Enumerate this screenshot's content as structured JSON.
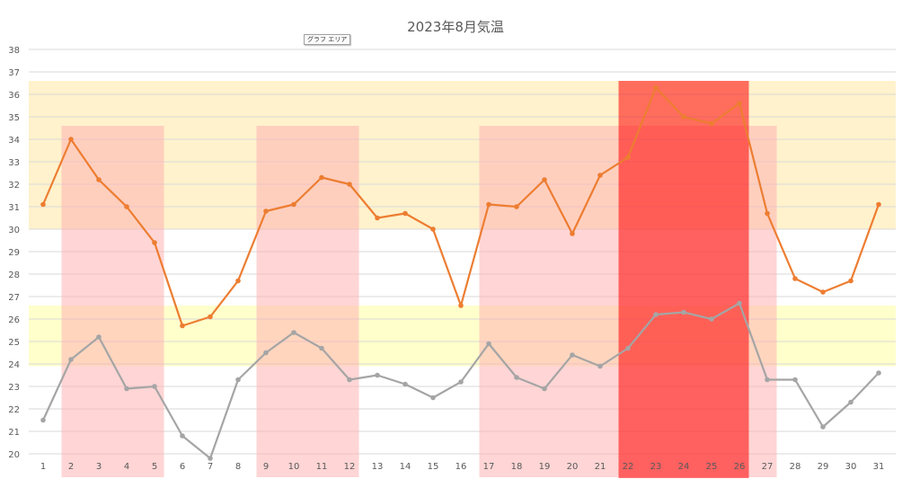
{
  "tooltip": "グラフ エリア",
  "chart_data": {
    "type": "line",
    "title": "2023年8月気温",
    "xlabel": "",
    "ylabel": "",
    "ylim": [
      20,
      38
    ],
    "yticks": [
      20,
      21,
      22,
      23,
      24,
      25,
      26,
      27,
      28,
      29,
      30,
      31,
      32,
      33,
      34,
      35,
      36,
      37,
      38
    ],
    "grid": true,
    "legend": "none",
    "categories": [
      "1",
      "2",
      "3",
      "4",
      "5",
      "6",
      "7",
      "8",
      "9",
      "10",
      "11",
      "12",
      "13",
      "14",
      "15",
      "16",
      "17",
      "18",
      "19",
      "20",
      "21",
      "22",
      "23",
      "24",
      "25",
      "26",
      "27",
      "28",
      "29",
      "30",
      "31"
    ],
    "series": [
      {
        "color": "#ED7D31",
        "values": [
          31.1,
          34.0,
          32.2,
          31.0,
          29.4,
          25.7,
          26.1,
          27.7,
          30.8,
          31.1,
          32.3,
          32.0,
          30.5,
          30.7,
          30.0,
          26.6,
          31.1,
          31.0,
          32.2,
          29.8,
          32.4,
          33.2,
          36.3,
          35.0,
          34.7,
          35.6,
          30.7,
          27.8,
          27.2,
          27.7,
          31.1
        ]
      },
      {
        "color": "#A5A5A5",
        "values": [
          21.5,
          24.2,
          25.2,
          22.9,
          23.0,
          20.8,
          19.8,
          23.3,
          24.5,
          25.4,
          24.7,
          23.3,
          23.5,
          23.1,
          22.5,
          23.2,
          24.9,
          23.4,
          22.9,
          24.4,
          23.9,
          24.7,
          26.2,
          26.3,
          26.0,
          26.7,
          23.3,
          23.3,
          21.2,
          22.3,
          23.6
        ]
      }
    ],
    "bands": [
      {
        "from": 30,
        "to": 36.6,
        "color": "#FFF2CC"
      },
      {
        "from": 23.9,
        "to": 26.6,
        "color": "#FFFFCC"
      }
    ],
    "highlight_ranges": [
      {
        "start": 2,
        "end": 5,
        "color": "#FFB3B3"
      },
      {
        "start": 9,
        "end": 12,
        "color": "#FFB3B3"
      },
      {
        "start": 17,
        "end": 27,
        "color": "#FFB3B3"
      },
      {
        "start": 22,
        "end": 26,
        "color": "#FF0000"
      }
    ]
  }
}
